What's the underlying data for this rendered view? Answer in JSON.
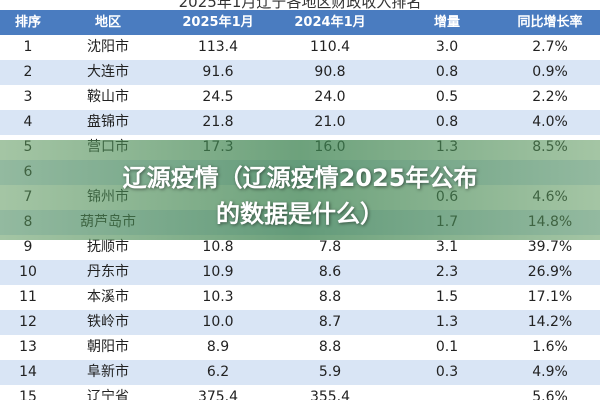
{
  "table": {
    "title": "2025年1月辽宁各地区财政收入排名",
    "header": [
      "排序",
      "地区",
      "2025年1月",
      "2024年1月",
      "增量",
      "同比增长率"
    ],
    "rows": [
      [
        "1",
        "沈阳市",
        "113.4",
        "110.4",
        "3.0",
        "2.7%"
      ],
      [
        "2",
        "大连市",
        "91.6",
        "90.8",
        "0.8",
        "0.9%"
      ],
      [
        "3",
        "鞍山市",
        "24.5",
        "24.0",
        "0.5",
        "2.2%"
      ],
      [
        "4",
        "盘锦市",
        "21.8",
        "21.0",
        "0.8",
        "4.0%"
      ],
      [
        "5",
        "营口市",
        "17.3",
        "16.0",
        "1.3",
        "8.5%"
      ],
      [
        "6",
        null,
        null,
        null,
        null,
        null
      ],
      [
        "7",
        "锦州市",
        null,
        null,
        "0.6",
        "4.6%"
      ],
      [
        "8",
        "葫芦岛市",
        null,
        null,
        "1.7",
        "14.8%"
      ],
      [
        "9",
        "抚顺市",
        "10.8",
        "7.8",
        "3.1",
        "39.7%"
      ],
      [
        "10",
        "丹东市",
        "10.9",
        "8.6",
        "2.3",
        "26.9%"
      ],
      [
        "11",
        "本溪市",
        "10.3",
        "8.8",
        "1.5",
        "17.1%"
      ],
      [
        "12",
        "铁岭市",
        "10.0",
        "8.7",
        "1.3",
        "14.2%"
      ],
      [
        "13",
        "朝阳市",
        "8.9",
        "8.8",
        "0.1",
        "1.6%"
      ],
      [
        "14",
        "阜新市",
        "6.2",
        "5.9",
        "0.3",
        "4.9%"
      ],
      [
        "15",
        "辽宁省",
        "375.4",
        "355.4",
        null,
        "5.6%"
      ]
    ]
  },
  "banner": {
    "line1": "辽源疫情（辽源疫情2025年公布",
    "line2": "的数据是什么）"
  }
}
